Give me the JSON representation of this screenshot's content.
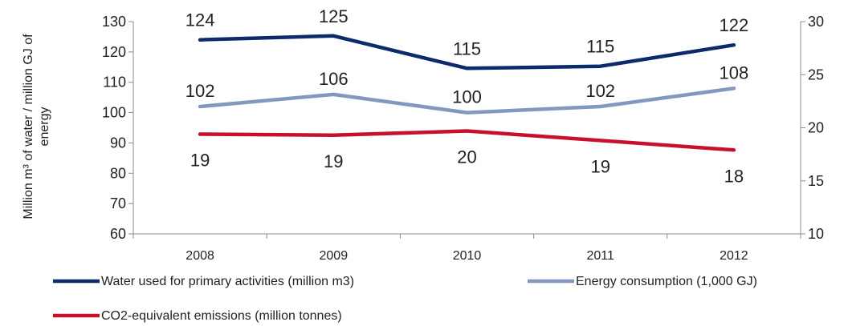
{
  "chart_data": {
    "type": "line",
    "title": "",
    "xlabel": "",
    "ylabel_lines": [
      "Million m³ of water / million GJ of",
      "energy"
    ],
    "categories": [
      "2008",
      "2009",
      "2010",
      "2011",
      "2012"
    ],
    "y_left": {
      "min": 60,
      "max": 130,
      "ticks": [
        "60",
        "70",
        "80",
        "90",
        "100",
        "110",
        "120",
        "130"
      ]
    },
    "y_right": {
      "min": 10,
      "max": 30,
      "ticks": [
        "10",
        "15",
        "20",
        "25",
        "30"
      ]
    },
    "grid": false,
    "legend_position": "bottom",
    "series": [
      {
        "name": "Water used for primary activities (million m3)",
        "axis": "left",
        "color": "#0d2a6b",
        "values": [
          124,
          125.3,
          114.6,
          115.3,
          122.3
        ],
        "labels": [
          "124",
          "125",
          "115",
          "115",
          "122"
        ]
      },
      {
        "name": "Energy consumption (1,000 GJ)",
        "axis": "left",
        "color": "#8498bf",
        "values": [
          102,
          106,
          100,
          102,
          108
        ],
        "labels": [
          "102",
          "106",
          "100",
          "102",
          "108"
        ]
      },
      {
        "name": "CO2-equivalent emissions (million tonnes)",
        "axis": "right",
        "color": "#c8102e",
        "values": [
          19.4,
          19.3,
          19.7,
          18.8,
          17.9
        ],
        "labels": [
          "19",
          "19",
          "20",
          "19",
          "18"
        ]
      }
    ]
  }
}
